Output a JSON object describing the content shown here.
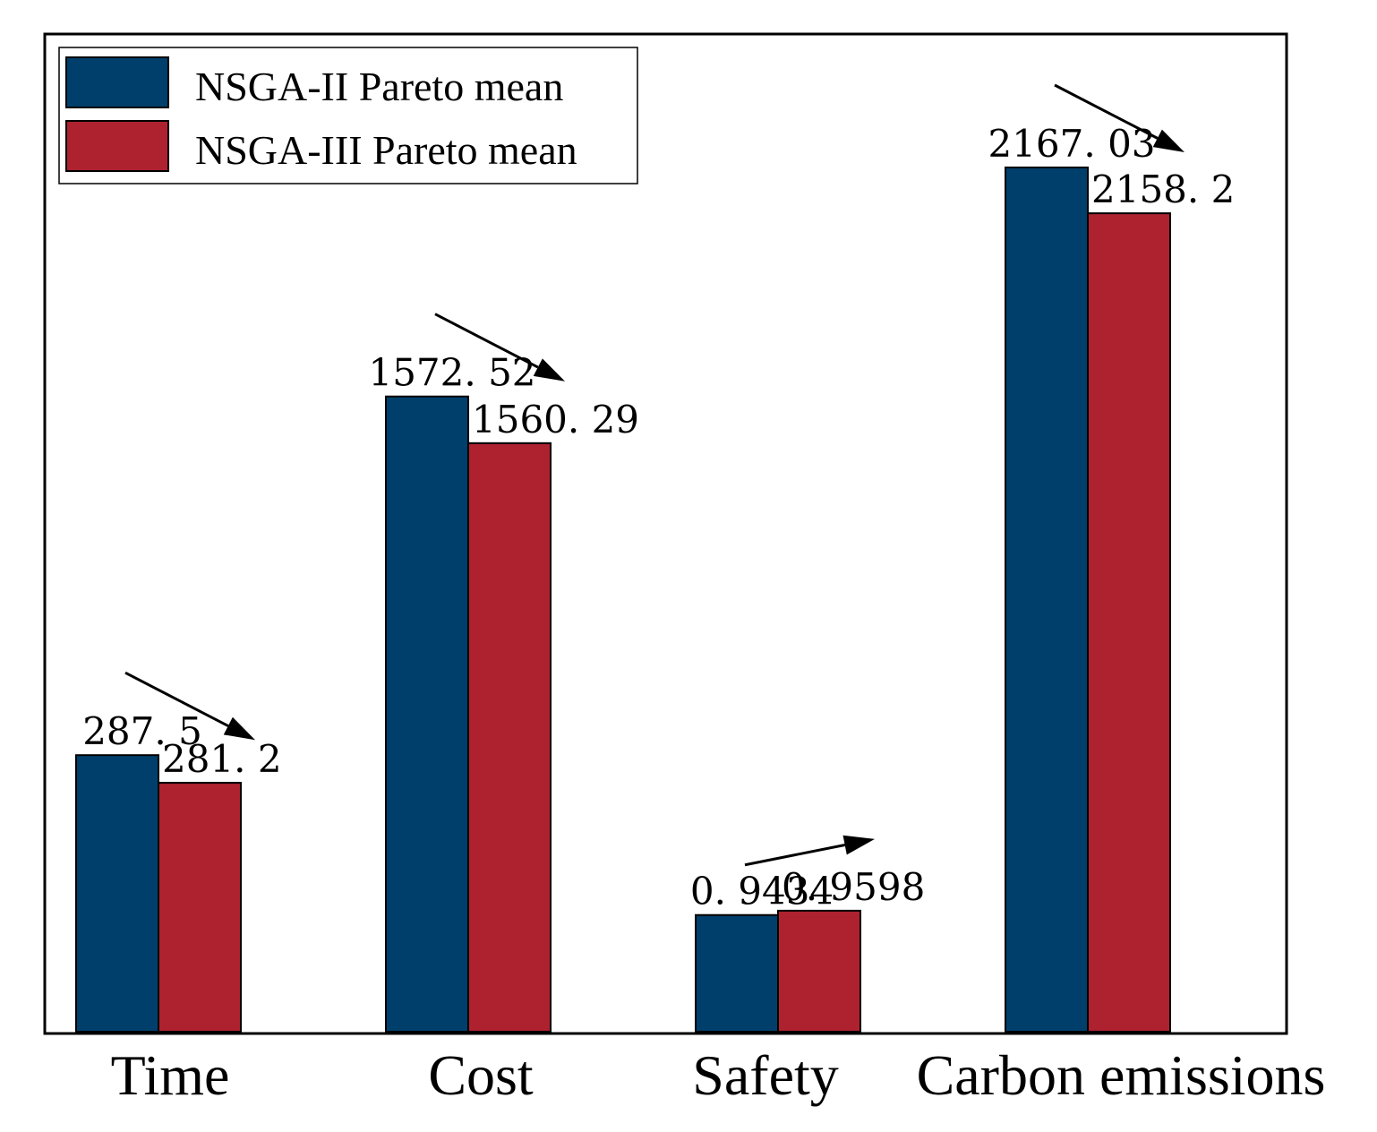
{
  "chart_data": {
    "type": "bar",
    "title": "",
    "xlabel": "",
    "ylabel": "",
    "categories": [
      "Time",
      "Cost",
      "Safety",
      "Carbon emissions"
    ],
    "series": [
      {
        "name": "NSGA-II Pareto mean",
        "color": "#003f6b",
        "labels": [
          "287. 5",
          "1572. 52",
          "0. 9434",
          "2167. 03"
        ]
      },
      {
        "name": "NSGA-III Pareto mean",
        "color": "#ae2230",
        "labels": [
          "281. 2",
          "1560. 29",
          "0. 9598",
          "2158. 2"
        ]
      }
    ],
    "bar_heights_relative": [
      [
        0.32,
        0.288
      ],
      [
        0.735,
        0.681
      ],
      [
        0.135,
        0.14
      ],
      [
        1.0,
        0.947
      ]
    ],
    "trend_arrows": [
      "down",
      "down",
      "up",
      "down"
    ],
    "legend_position": "top-left",
    "grid": false
  }
}
